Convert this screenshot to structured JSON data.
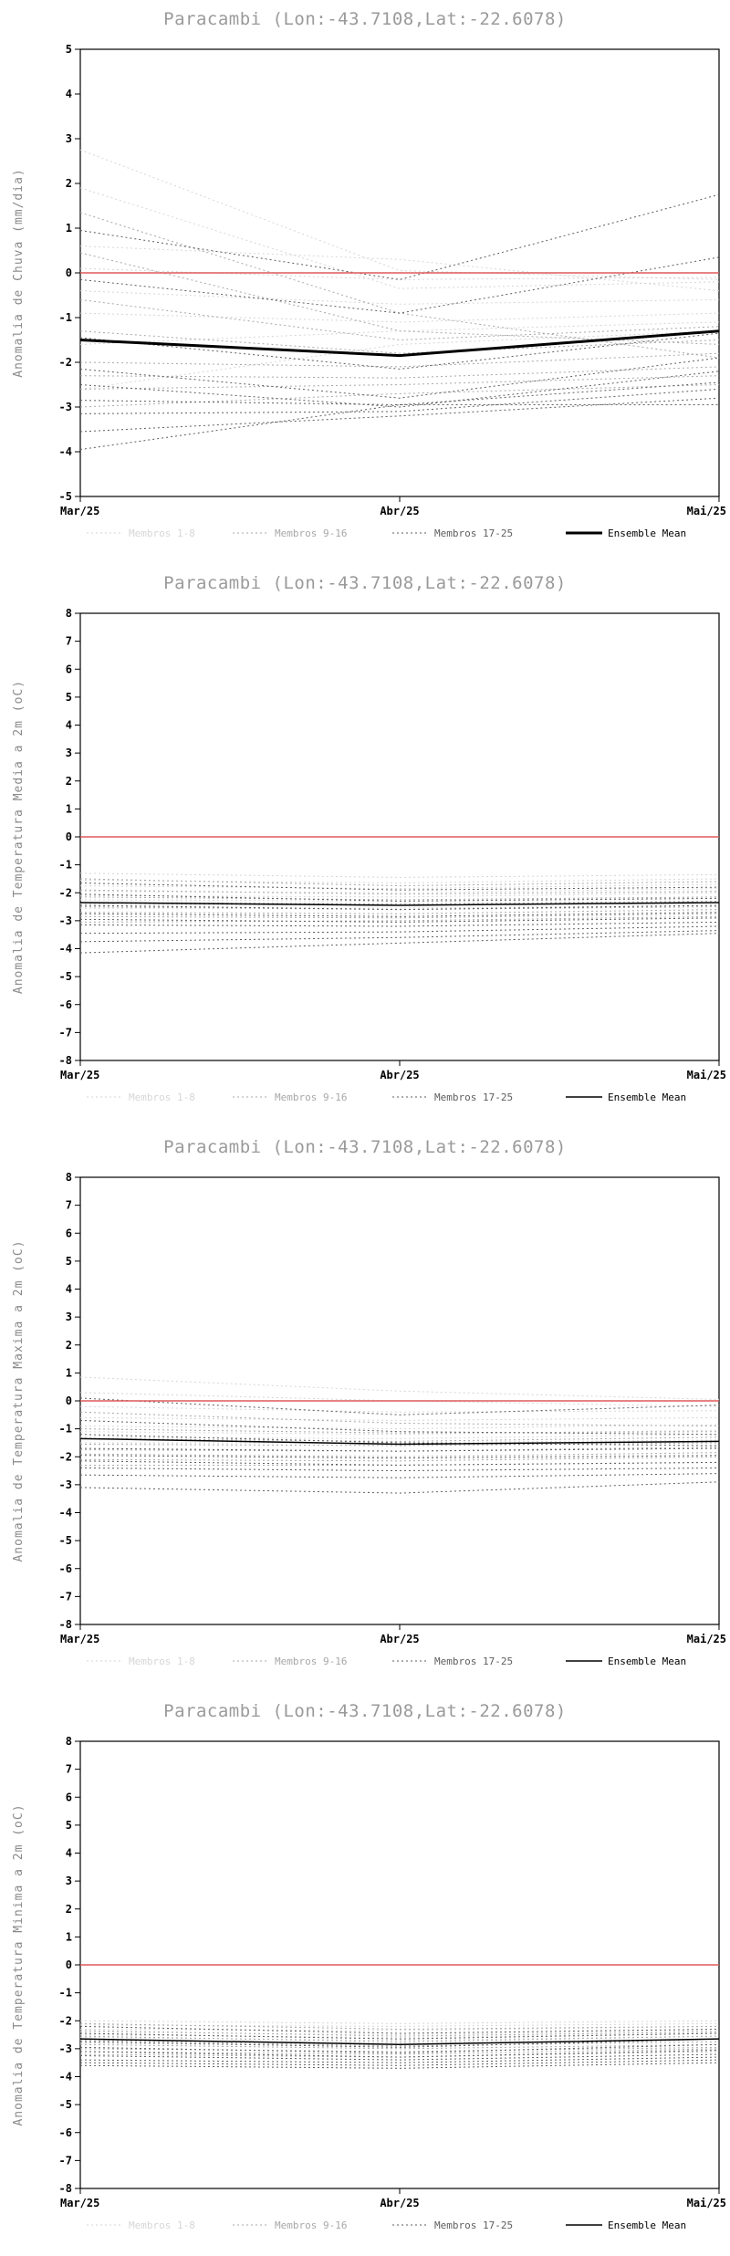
{
  "location": {
    "name": "Paracambi",
    "lon": "-43.7108",
    "lat": "-22.6078"
  },
  "chart_data": [
    {
      "type": "line",
      "title": "Paracambi (Lon:-43.7108,Lat:-22.6078)",
      "ylabel": "Anomalia de Chuva (mm/dia)",
      "ylim": [
        -5,
        5
      ],
      "ytick_step": 1,
      "x_ticklabels": [
        "Mar/25",
        "Abr/25",
        "Mai/25"
      ],
      "legend_position": "bottom",
      "grid": false,
      "zero_line": {
        "name": "zero-reference",
        "color": "#dd5c5c",
        "values": [
          0,
          0,
          0
        ]
      },
      "groups": [
        {
          "name": "Membros 1-8",
          "color": "#d6d6d6",
          "members": [
            [
              2.75,
              0.05,
              -0.15
            ],
            [
              1.9,
              -0.35,
              -0.2
            ],
            [
              0.6,
              0.3,
              -0.4
            ],
            [
              0.1,
              -0.15,
              -0.1
            ],
            [
              -0.4,
              -0.7,
              -0.6
            ],
            [
              -0.9,
              -1.1,
              -0.9
            ],
            [
              -1.6,
              -1.3,
              -1.1
            ],
            [
              -2.6,
              -1.6,
              -1.3
            ]
          ]
        },
        {
          "name": "Membros 9-16",
          "color": "#a8a8a8",
          "members": [
            [
              1.35,
              -0.9,
              -1.9
            ],
            [
              0.45,
              -1.3,
              -1.6
            ],
            [
              -0.6,
              -1.5,
              -1.2
            ],
            [
              -1.3,
              -1.8,
              -1.5
            ],
            [
              -2.0,
              -2.1,
              -1.8
            ],
            [
              -2.3,
              -2.35,
              -2.1
            ],
            [
              -2.6,
              -2.5,
              -2.3
            ],
            [
              -3.0,
              -2.7,
              -2.5
            ]
          ]
        },
        {
          "name": "Membros 17-25",
          "color": "#5e5e5e",
          "members": [
            [
              0.95,
              -0.15,
              1.75
            ],
            [
              -0.15,
              -0.9,
              0.35
            ],
            [
              -1.45,
              -2.15,
              -1.35
            ],
            [
              -2.15,
              -2.8,
              -1.9
            ],
            [
              -2.5,
              -3.0,
              -2.2
            ],
            [
              -2.85,
              -2.95,
              -2.45
            ],
            [
              -3.15,
              -3.1,
              -2.6
            ],
            [
              -3.55,
              -3.2,
              -2.8
            ],
            [
              -3.95,
              -2.95,
              -2.95
            ]
          ]
        }
      ],
      "mean": {
        "name": "Ensemble Mean",
        "color": "#000000",
        "width": 3,
        "values": [
          -1.5,
          -1.85,
          -1.3
        ]
      }
    },
    {
      "type": "line",
      "title": "Paracambi (Lon:-43.7108,Lat:-22.6078)",
      "ylabel": "Anomalia de Temperatura Media a 2m (oC)",
      "ylim": [
        -8,
        8
      ],
      "ytick_step": 1,
      "x_ticklabels": [
        "Mar/25",
        "Abr/25",
        "Mai/25"
      ],
      "legend_position": "bottom",
      "grid": false,
      "zero_line": {
        "name": "zero-reference",
        "color": "#dd5c5c",
        "values": [
          0,
          0,
          0
        ]
      },
      "groups": [
        {
          "name": "Membros 1-8",
          "color": "#d6d6d6",
          "members": [
            [
              -1.3,
              -1.45,
              -1.35
            ],
            [
              -1.55,
              -1.65,
              -1.5
            ],
            [
              -1.75,
              -1.85,
              -1.7
            ],
            [
              -1.95,
              -2.0,
              -1.85
            ],
            [
              -2.1,
              -2.15,
              -2.0
            ],
            [
              -2.25,
              -2.3,
              -2.15
            ],
            [
              -2.4,
              -2.45,
              -2.3
            ],
            [
              -2.55,
              -2.55,
              -2.45
            ]
          ]
        },
        {
          "name": "Membros 9-16",
          "color": "#a8a8a8",
          "members": [
            [
              -1.5,
              -1.75,
              -1.6
            ],
            [
              -1.9,
              -2.05,
              -1.95
            ],
            [
              -2.15,
              -2.25,
              -2.15
            ],
            [
              -2.35,
              -2.4,
              -2.3
            ],
            [
              -2.5,
              -2.6,
              -2.5
            ],
            [
              -2.7,
              -2.75,
              -2.6
            ],
            [
              -2.85,
              -2.9,
              -2.75
            ],
            [
              -3.05,
              -3.0,
              -2.85
            ]
          ]
        },
        {
          "name": "Membros 17-25",
          "color": "#5e5e5e",
          "members": [
            [
              -1.65,
              -1.9,
              -1.8
            ],
            [
              -2.05,
              -2.3,
              -2.2
            ],
            [
              -2.45,
              -2.6,
              -2.45
            ],
            [
              -2.75,
              -2.85,
              -2.7
            ],
            [
              -2.95,
              -3.05,
              -2.9
            ],
            [
              -3.15,
              -3.2,
              -3.05
            ],
            [
              -3.45,
              -3.4,
              -3.2
            ],
            [
              -3.75,
              -3.6,
              -3.35
            ],
            [
              -4.15,
              -3.8,
              -3.45
            ]
          ]
        }
      ],
      "mean": {
        "name": "Ensemble Mean",
        "color": "#000000",
        "width": 1.5,
        "values": [
          -2.35,
          -2.45,
          -2.35
        ]
      }
    },
    {
      "type": "line",
      "title": "Paracambi (Lon:-43.7108,Lat:-22.6078)",
      "ylabel": "Anomalia de Temperatura Maxima a 2m (oC)",
      "ylim": [
        -8,
        8
      ],
      "ytick_step": 1,
      "x_ticklabels": [
        "Mar/25",
        "Abr/25",
        "Mai/25"
      ],
      "legend_position": "bottom",
      "grid": false,
      "zero_line": {
        "name": "zero-reference",
        "color": "#dd5c5c",
        "values": [
          0,
          0,
          0
        ]
      },
      "groups": [
        {
          "name": "Membros 1-8",
          "color": "#d6d6d6",
          "members": [
            [
              0.85,
              0.35,
              0.05
            ],
            [
              0.3,
              0.0,
              -0.2
            ],
            [
              -0.2,
              -0.4,
              -0.35
            ],
            [
              -0.6,
              -0.7,
              -0.6
            ],
            [
              -0.9,
              -1.0,
              -0.85
            ],
            [
              -1.1,
              -1.2,
              -1.05
            ],
            [
              -1.3,
              -1.35,
              -1.2
            ],
            [
              -1.5,
              -1.5,
              -1.4
            ]
          ]
        },
        {
          "name": "Membros 9-16",
          "color": "#a8a8a8",
          "members": [
            [
              -0.4,
              -0.8,
              -0.9
            ],
            [
              -1.0,
              -1.15,
              -1.1
            ],
            [
              -1.35,
              -1.45,
              -1.3
            ],
            [
              -1.55,
              -1.6,
              -1.5
            ],
            [
              -1.75,
              -1.8,
              -1.65
            ],
            [
              -1.9,
              -2.0,
              -1.85
            ],
            [
              -2.1,
              -2.15,
              -2.0
            ],
            [
              -2.3,
              -2.3,
              -2.2
            ]
          ]
        },
        {
          "name": "Membros 17-25",
          "color": "#5e5e5e",
          "members": [
            [
              0.1,
              -0.5,
              -0.15
            ],
            [
              -0.7,
              -1.1,
              -1.2
            ],
            [
              -1.2,
              -1.5,
              -1.6
            ],
            [
              -1.7,
              -1.8,
              -1.7
            ],
            [
              -1.95,
              -2.05,
              -1.95
            ],
            [
              -2.15,
              -2.3,
              -2.2
            ],
            [
              -2.4,
              -2.5,
              -2.4
            ],
            [
              -2.65,
              -2.75,
              -2.6
            ],
            [
              -3.1,
              -3.3,
              -2.9
            ]
          ]
        }
      ],
      "mean": {
        "name": "Ensemble Mean",
        "color": "#000000",
        "width": 1.5,
        "values": [
          -1.35,
          -1.55,
          -1.45
        ]
      }
    },
    {
      "type": "line",
      "title": "Paracambi (Lon:-43.7108,Lat:-22.6078)",
      "ylabel": "Anomalia de Temperatura Minima a 2m (oC)",
      "ylim": [
        -8,
        8
      ],
      "ytick_step": 1,
      "x_ticklabels": [
        "Mar/25",
        "Abr/25",
        "Mai/25"
      ],
      "legend_position": "bottom",
      "grid": false,
      "zero_line": {
        "name": "zero-reference",
        "color": "#dd5c5c",
        "values": [
          0,
          0,
          0
        ]
      },
      "groups": [
        {
          "name": "Membros 1-8",
          "color": "#d6d6d6",
          "members": [
            [
              -2.0,
              -2.1,
              -2.0
            ],
            [
              -2.15,
              -2.2,
              -2.1
            ],
            [
              -2.3,
              -2.35,
              -2.2
            ],
            [
              -2.4,
              -2.5,
              -2.35
            ],
            [
              -2.5,
              -2.6,
              -2.45
            ],
            [
              -2.6,
              -2.7,
              -2.55
            ],
            [
              -2.7,
              -2.8,
              -2.65
            ],
            [
              -2.8,
              -2.9,
              -2.75
            ]
          ]
        },
        {
          "name": "Membros 9-16",
          "color": "#a8a8a8",
          "members": [
            [
              -2.1,
              -2.3,
              -2.2
            ],
            [
              -2.35,
              -2.55,
              -2.4
            ],
            [
              -2.55,
              -2.75,
              -2.55
            ],
            [
              -2.7,
              -2.9,
              -2.75
            ],
            [
              -2.85,
              -3.0,
              -2.85
            ],
            [
              -3.0,
              -3.1,
              -2.95
            ],
            [
              -3.1,
              -3.2,
              -3.0
            ],
            [
              -3.2,
              -3.3,
              -3.1
            ]
          ]
        },
        {
          "name": "Membros 17-25",
          "color": "#5e5e5e",
          "members": [
            [
              -2.2,
              -2.45,
              -2.3
            ],
            [
              -2.45,
              -2.65,
              -2.45
            ],
            [
              -2.75,
              -2.95,
              -2.65
            ],
            [
              -2.95,
              -3.15,
              -2.85
            ],
            [
              -3.1,
              -3.3,
              -3.05
            ],
            [
              -3.25,
              -3.4,
              -3.2
            ],
            [
              -3.4,
              -3.5,
              -3.3
            ],
            [
              -3.5,
              -3.6,
              -3.4
            ],
            [
              -3.6,
              -3.7,
              -3.5
            ]
          ]
        }
      ],
      "mean": {
        "name": "Ensemble Mean",
        "color": "#000000",
        "width": 1.5,
        "values": [
          -2.65,
          -2.85,
          -2.65
        ]
      }
    }
  ]
}
